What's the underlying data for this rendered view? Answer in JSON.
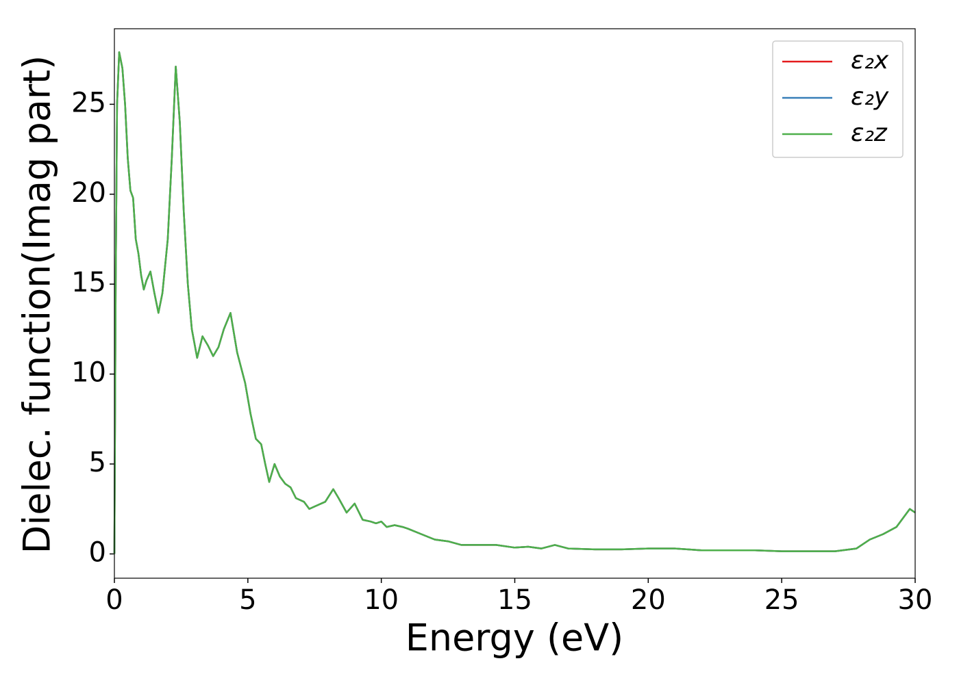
{
  "chart_data": {
    "type": "line",
    "x_label": "Energy (eV)",
    "y_label": "Dielec. function(Imag part)",
    "x": [
      0,
      0.05,
      0.1,
      0.18,
      0.3,
      0.4,
      0.5,
      0.6,
      0.7,
      0.8,
      0.9,
      1.0,
      1.1,
      1.2,
      1.35,
      1.5,
      1.65,
      1.8,
      2.0,
      2.15,
      2.3,
      2.45,
      2.6,
      2.75,
      2.9,
      3.1,
      3.3,
      3.5,
      3.7,
      3.9,
      4.1,
      4.35,
      4.6,
      4.9,
      5.1,
      5.3,
      5.5,
      5.65,
      5.8,
      6.0,
      6.2,
      6.4,
      6.6,
      6.8,
      7.1,
      7.3,
      7.6,
      7.9,
      8.2,
      8.4,
      8.7,
      9.0,
      9.3,
      9.6,
      9.8,
      10.0,
      10.2,
      10.5,
      10.8,
      11.0,
      11.5,
      12.0,
      12.5,
      13.0,
      14.0,
      14.3,
      15.0,
      15.5,
      16.0,
      16.5,
      17.0,
      18.0,
      19.0,
      20.0,
      21.0,
      22.0,
      23.0,
      24.0,
      25.0,
      26.0,
      27.0,
      27.8,
      28.3,
      28.8,
      29.3,
      29.8,
      30.0
    ],
    "series": [
      {
        "name": "ε₂x",
        "color": "#e41a1c",
        "values": [
          0,
          15,
          25,
          27.9,
          27,
          25,
          22,
          20.2,
          19.8,
          17.5,
          16.7,
          15.5,
          14.7,
          15.2,
          15.7,
          14.5,
          13.4,
          14.5,
          17.5,
          22,
          27.1,
          24,
          19,
          15,
          12.5,
          10.9,
          12.1,
          11.6,
          11,
          11.5,
          12.5,
          13.4,
          11.2,
          9.5,
          7.8,
          6.4,
          6.1,
          5,
          4,
          5,
          4.3,
          3.9,
          3.7,
          3.1,
          2.9,
          2.5,
          2.7,
          2.9,
          3.6,
          3.1,
          2.3,
          2.8,
          1.9,
          1.8,
          1.7,
          1.8,
          1.5,
          1.6,
          1.5,
          1.4,
          1.1,
          0.8,
          0.7,
          0.5,
          0.5,
          0.5,
          0.35,
          0.4,
          0.3,
          0.5,
          0.3,
          0.25,
          0.25,
          0.3,
          0.3,
          0.2,
          0.2,
          0.2,
          0.15,
          0.15,
          0.15,
          0.3,
          0.8,
          1.1,
          1.5,
          2.5,
          2.3
        ]
      },
      {
        "name": "ε₂y",
        "color": "#377eb8",
        "values": [
          0,
          15,
          25,
          27.9,
          27,
          25,
          22,
          20.2,
          19.8,
          17.5,
          16.7,
          15.5,
          14.7,
          15.2,
          15.7,
          14.5,
          13.4,
          14.5,
          17.5,
          22,
          27.1,
          24,
          19,
          15,
          12.5,
          10.9,
          12.1,
          11.6,
          11,
          11.5,
          12.5,
          13.4,
          11.2,
          9.5,
          7.8,
          6.4,
          6.1,
          5,
          4,
          5,
          4.3,
          3.9,
          3.7,
          3.1,
          2.9,
          2.5,
          2.7,
          2.9,
          3.6,
          3.1,
          2.3,
          2.8,
          1.9,
          1.8,
          1.7,
          1.8,
          1.5,
          1.6,
          1.5,
          1.4,
          1.1,
          0.8,
          0.7,
          0.5,
          0.5,
          0.5,
          0.35,
          0.4,
          0.3,
          0.5,
          0.3,
          0.25,
          0.25,
          0.3,
          0.3,
          0.2,
          0.2,
          0.2,
          0.15,
          0.15,
          0.15,
          0.3,
          0.8,
          1.1,
          1.5,
          2.5,
          2.3
        ]
      },
      {
        "name": "ε₂z",
        "color": "#4daf4a",
        "values": [
          0,
          15,
          25,
          27.9,
          27,
          25,
          22,
          20.2,
          19.8,
          17.5,
          16.7,
          15.5,
          14.7,
          15.2,
          15.7,
          14.5,
          13.4,
          14.5,
          17.5,
          22,
          27.1,
          24,
          19,
          15,
          12.5,
          10.9,
          12.1,
          11.6,
          11,
          11.5,
          12.5,
          13.4,
          11.2,
          9.5,
          7.8,
          6.4,
          6.1,
          5,
          4,
          5,
          4.3,
          3.9,
          3.7,
          3.1,
          2.9,
          2.5,
          2.7,
          2.9,
          3.6,
          3.1,
          2.3,
          2.8,
          1.9,
          1.8,
          1.7,
          1.8,
          1.5,
          1.6,
          1.5,
          1.4,
          1.1,
          0.8,
          0.7,
          0.5,
          0.5,
          0.5,
          0.35,
          0.4,
          0.3,
          0.5,
          0.3,
          0.25,
          0.25,
          0.3,
          0.3,
          0.2,
          0.2,
          0.2,
          0.15,
          0.15,
          0.15,
          0.3,
          0.8,
          1.1,
          1.5,
          2.5,
          2.3
        ]
      }
    ],
    "xlim": [
      0,
      30
    ],
    "xticks": [
      0,
      5,
      10,
      15,
      20,
      25,
      30
    ],
    "ylim": [
      -1.35,
      29.2
    ],
    "yticks": [
      0,
      5,
      10,
      15,
      20,
      25
    ],
    "legend": "upper right"
  }
}
